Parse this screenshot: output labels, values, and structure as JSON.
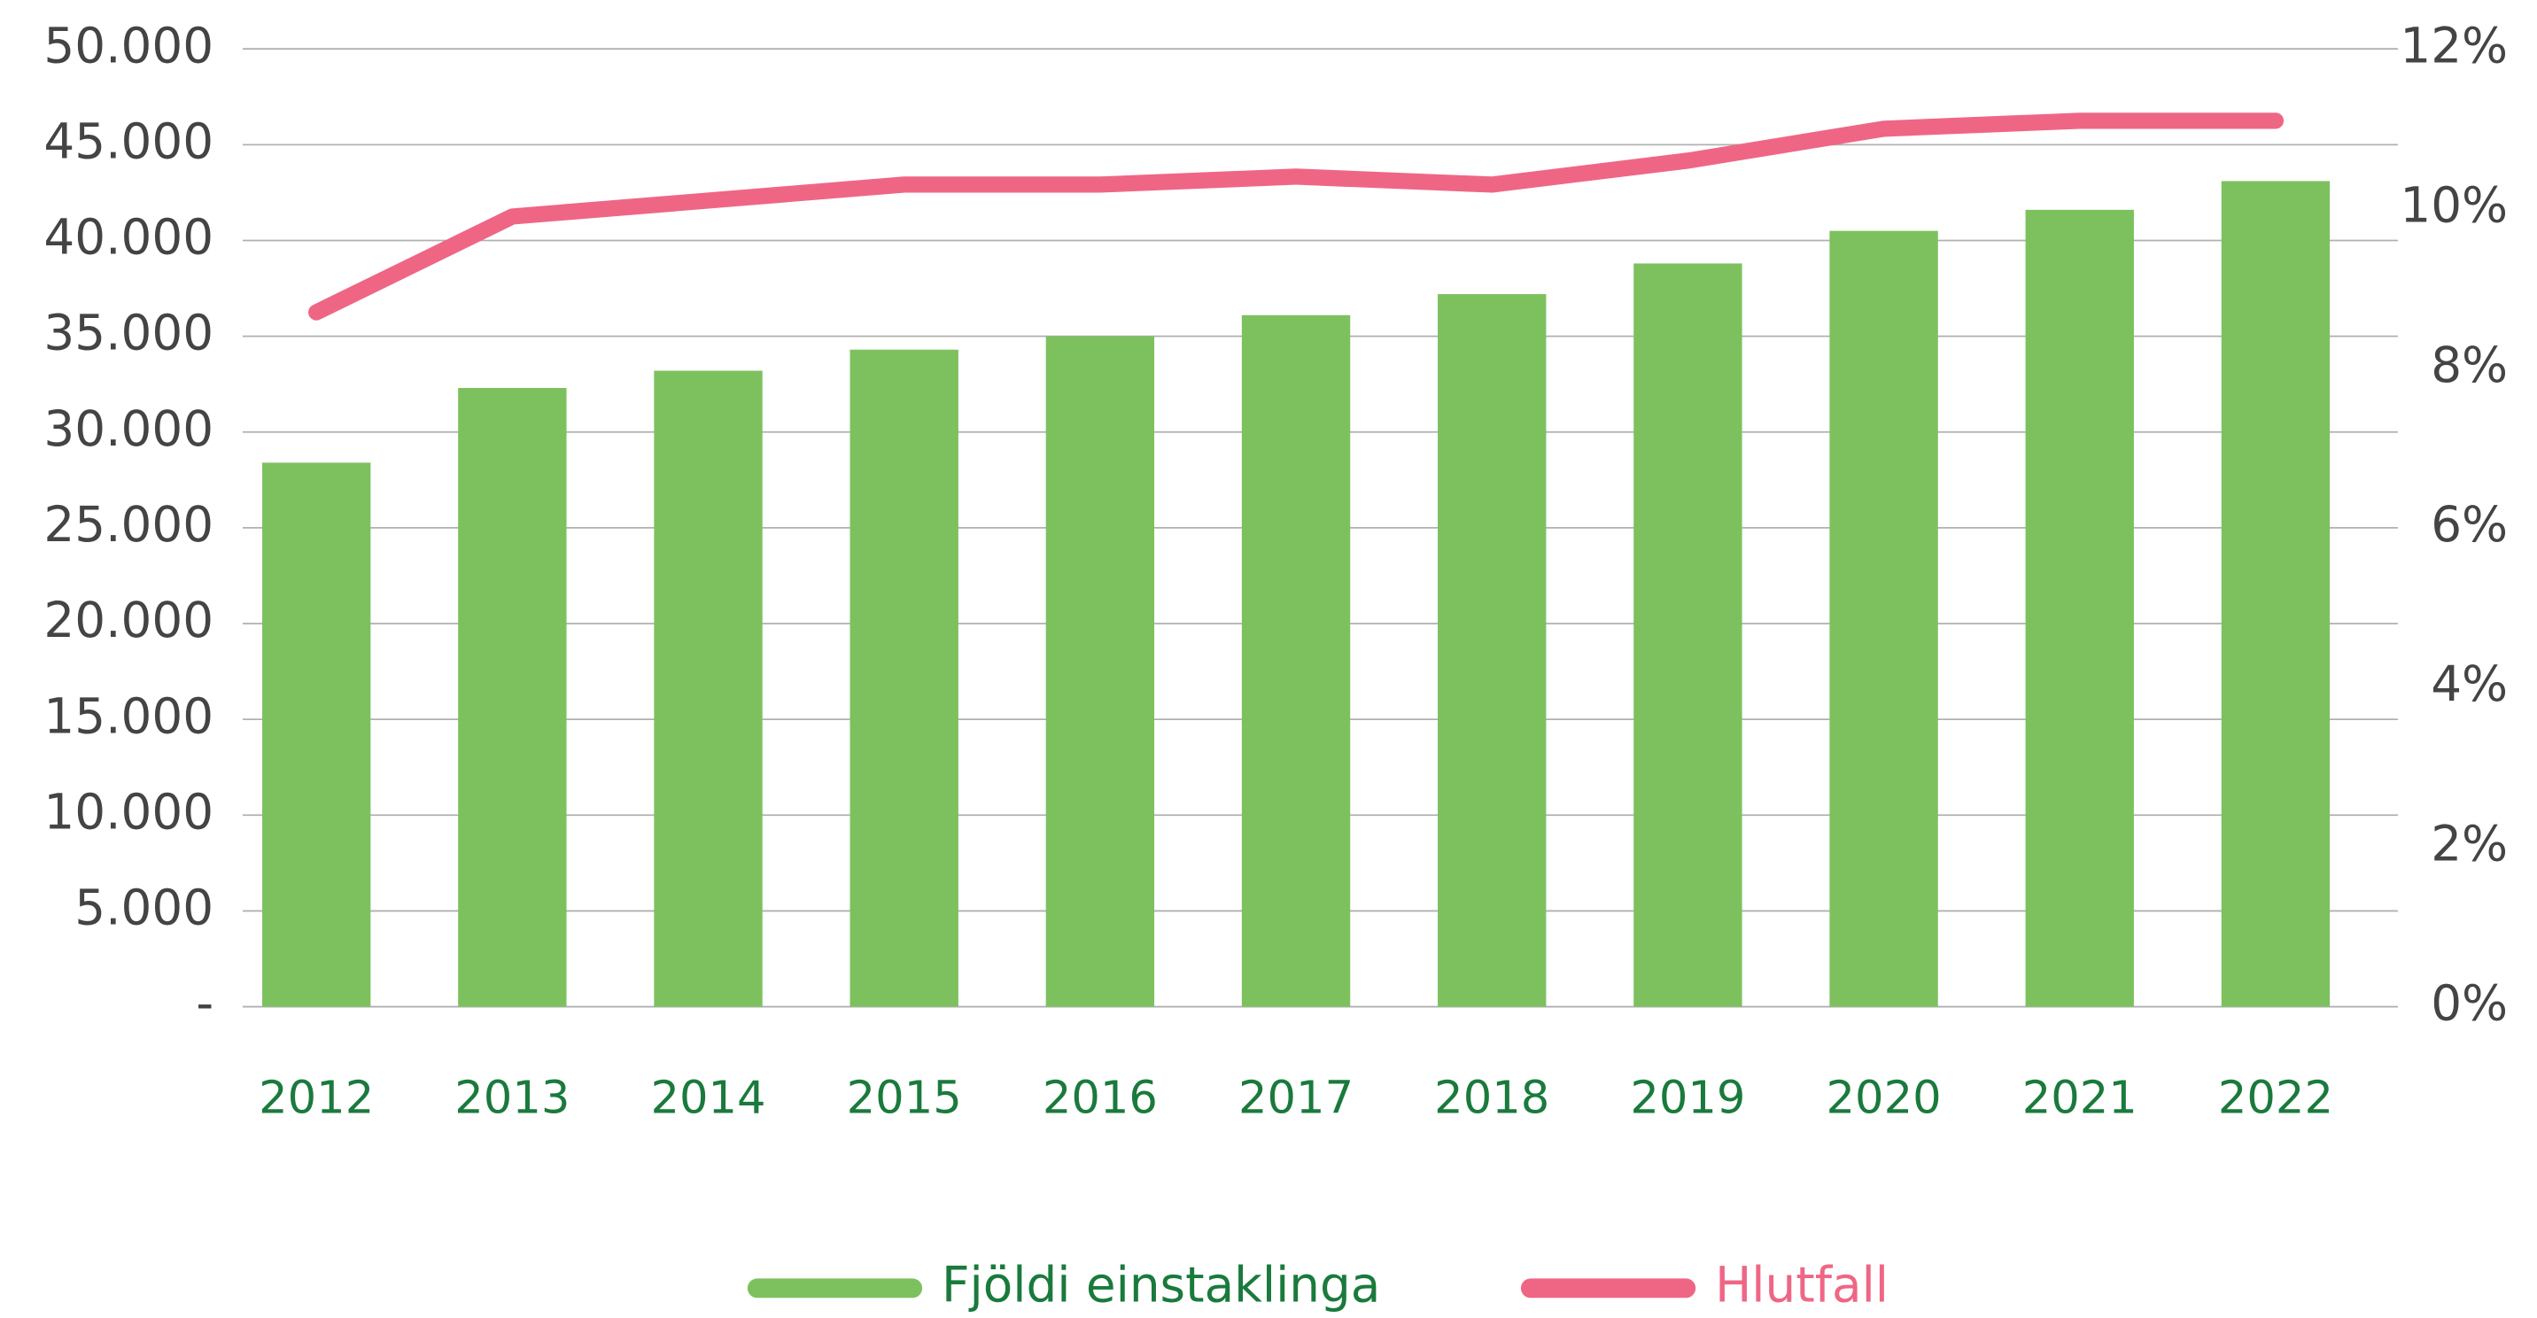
{
  "chart_data": {
    "type": "bar",
    "categories": [
      "2012",
      "2013",
      "2014",
      "2015",
      "2016",
      "2017",
      "2018",
      "2019",
      "2020",
      "2021",
      "2022"
    ],
    "series": [
      {
        "name": "Fjöldi einstaklinga",
        "type": "bar",
        "color": "#7dc15f",
        "values": [
          28400,
          32300,
          33200,
          34300,
          35000,
          36100,
          37200,
          38800,
          40500,
          41600,
          43100
        ]
      },
      {
        "name": "Hlutfall",
        "type": "line",
        "axis": "y2",
        "color": "#ef6685",
        "values": [
          8.7,
          9.9,
          10.1,
          10.3,
          10.3,
          10.4,
          10.3,
          10.6,
          11.0,
          11.1,
          11.1
        ]
      }
    ],
    "ylim": [
      0,
      50000
    ],
    "yticks": [
      {
        "value": 0,
        "label": "-"
      },
      {
        "value": 5000,
        "label": "5.000"
      },
      {
        "value": 10000,
        "label": "10.000"
      },
      {
        "value": 15000,
        "label": "15.000"
      },
      {
        "value": 20000,
        "label": "20.000"
      },
      {
        "value": 25000,
        "label": "25.000"
      },
      {
        "value": 30000,
        "label": "30.000"
      },
      {
        "value": 35000,
        "label": "35.000"
      },
      {
        "value": 40000,
        "label": "40.000"
      },
      {
        "value": 45000,
        "label": "45.000"
      },
      {
        "value": 50000,
        "label": "50.000"
      }
    ],
    "y2lim": [
      0,
      12
    ],
    "y2ticks": [
      {
        "value": 0,
        "label": "0%"
      },
      {
        "value": 2,
        "label": "2%"
      },
      {
        "value": 4,
        "label": "4%"
      },
      {
        "value": 6,
        "label": "6%"
      },
      {
        "value": 8,
        "label": "8%"
      },
      {
        "value": 10,
        "label": "10%"
      },
      {
        "value": 12,
        "label": "12%"
      }
    ],
    "grid": true,
    "legend": "bottom"
  }
}
